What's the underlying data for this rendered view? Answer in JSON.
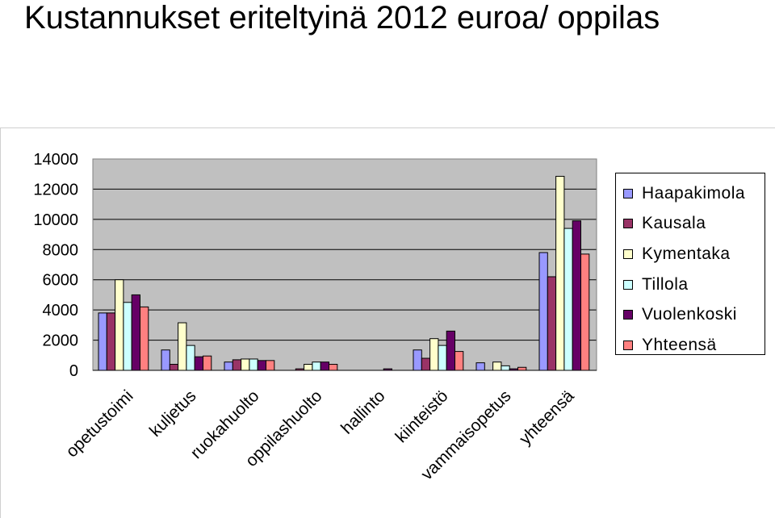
{
  "title": "Kustannukset eriteltyinä 2012 euroa/ oppilas",
  "chart_data": {
    "type": "bar",
    "title": "Kustannukset eriteltyinä 2012 euroa/ oppilas",
    "xlabel": "",
    "ylabel": "",
    "ylim": [
      0,
      14000
    ],
    "yticks": [
      0,
      2000,
      4000,
      6000,
      8000,
      10000,
      12000,
      14000
    ],
    "grid": true,
    "legend_position": "right",
    "categories": [
      "opetustoimi",
      "kuljetus",
      "ruokahuolto",
      "oppilashuolto",
      "hallinto",
      "kiinteistö",
      "vammaisopetus",
      "yhteensä"
    ],
    "series": [
      {
        "name": "Haapakimola",
        "color": "#9999ff",
        "values": [
          3800,
          1350,
          550,
          0,
          0,
          1350,
          500,
          7800
        ]
      },
      {
        "name": "Kausala",
        "color": "#993366",
        "values": [
          3800,
          400,
          700,
          100,
          0,
          800,
          0,
          6200
        ]
      },
      {
        "name": "Kymentaka",
        "color": "#ffffcc",
        "values": [
          6000,
          3150,
          750,
          400,
          0,
          2100,
          550,
          12850
        ]
      },
      {
        "name": "Tillola",
        "color": "#ccffff",
        "values": [
          4500,
          1650,
          750,
          550,
          0,
          1650,
          300,
          9400
        ]
      },
      {
        "name": "Vuolenkoski",
        "color": "#660066",
        "values": [
          5000,
          900,
          650,
          550,
          100,
          2600,
          100,
          9900
        ]
      },
      {
        "name": "Yhteensä",
        "color": "#ff8080",
        "values": [
          4200,
          950,
          650,
          400,
          0,
          1250,
          200,
          7700
        ]
      }
    ]
  }
}
